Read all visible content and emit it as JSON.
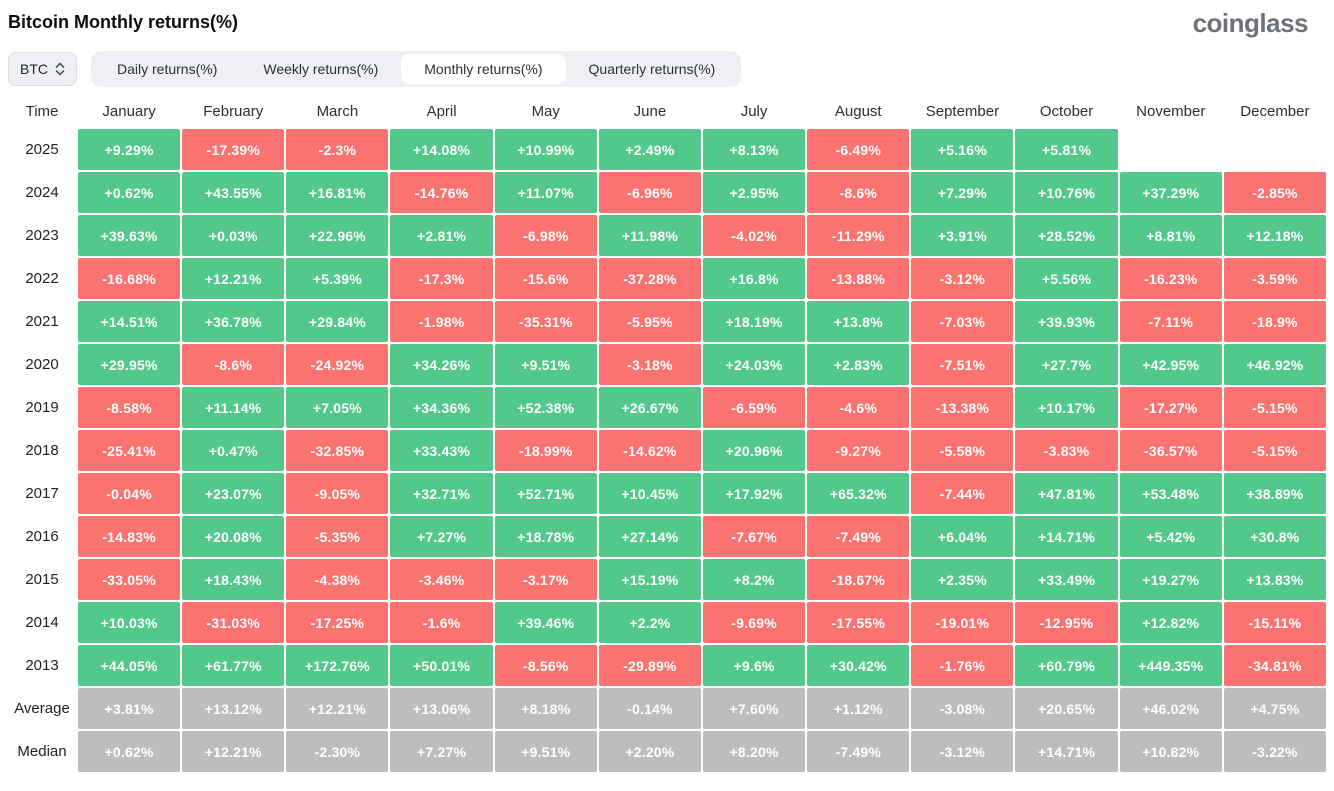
{
  "header": {
    "title": "Bitcoin Monthly returns(%)",
    "logo": "coinglass"
  },
  "controls": {
    "coin": "BTC",
    "tabs": [
      {
        "label": "Daily returns(%)",
        "active": false
      },
      {
        "label": "Weekly returns(%)",
        "active": false
      },
      {
        "label": "Monthly returns(%)",
        "active": true
      },
      {
        "label": "Quarterly returns(%)",
        "active": false
      }
    ]
  },
  "colors": {
    "positive": "#52c98a",
    "negative": "#fa7370",
    "neutral": "#bdbdbd"
  },
  "chart_data": {
    "type": "heatmap",
    "title": "Bitcoin Monthly returns(%)",
    "columns": [
      "Time",
      "January",
      "February",
      "March",
      "April",
      "May",
      "June",
      "July",
      "August",
      "September",
      "October",
      "November",
      "December"
    ],
    "rows": [
      {
        "label": "2025",
        "neutral": false,
        "values": [
          "+9.29%",
          "-17.39%",
          "-2.3%",
          "+14.08%",
          "+10.99%",
          "+2.49%",
          "+8.13%",
          "-6.49%",
          "+5.16%",
          "+5.81%",
          null,
          null
        ]
      },
      {
        "label": "2024",
        "neutral": false,
        "values": [
          "+0.62%",
          "+43.55%",
          "+16.81%",
          "-14.76%",
          "+11.07%",
          "-6.96%",
          "+2.95%",
          "-8.6%",
          "+7.29%",
          "+10.76%",
          "+37.29%",
          "-2.85%"
        ]
      },
      {
        "label": "2023",
        "neutral": false,
        "values": [
          "+39.63%",
          "+0.03%",
          "+22.96%",
          "+2.81%",
          "-6.98%",
          "+11.98%",
          "-4.02%",
          "-11.29%",
          "+3.91%",
          "+28.52%",
          "+8.81%",
          "+12.18%"
        ]
      },
      {
        "label": "2022",
        "neutral": false,
        "values": [
          "-16.68%",
          "+12.21%",
          "+5.39%",
          "-17.3%",
          "-15.6%",
          "-37.28%",
          "+16.8%",
          "-13.88%",
          "-3.12%",
          "+5.56%",
          "-16.23%",
          "-3.59%"
        ]
      },
      {
        "label": "2021",
        "neutral": false,
        "values": [
          "+14.51%",
          "+36.78%",
          "+29.84%",
          "-1.98%",
          "-35.31%",
          "-5.95%",
          "+18.19%",
          "+13.8%",
          "-7.03%",
          "+39.93%",
          "-7.11%",
          "-18.9%"
        ]
      },
      {
        "label": "2020",
        "neutral": false,
        "values": [
          "+29.95%",
          "-8.6%",
          "-24.92%",
          "+34.26%",
          "+9.51%",
          "-3.18%",
          "+24.03%",
          "+2.83%",
          "-7.51%",
          "+27.7%",
          "+42.95%",
          "+46.92%"
        ]
      },
      {
        "label": "2019",
        "neutral": false,
        "values": [
          "-8.58%",
          "+11.14%",
          "+7.05%",
          "+34.36%",
          "+52.38%",
          "+26.67%",
          "-6.59%",
          "-4.6%",
          "-13.38%",
          "+10.17%",
          "-17.27%",
          "-5.15%"
        ]
      },
      {
        "label": "2018",
        "neutral": false,
        "values": [
          "-25.41%",
          "+0.47%",
          "-32.85%",
          "+33.43%",
          "-18.99%",
          "-14.62%",
          "+20.96%",
          "-9.27%",
          "-5.58%",
          "-3.83%",
          "-36.57%",
          "-5.15%"
        ]
      },
      {
        "label": "2017",
        "neutral": false,
        "values": [
          "-0.04%",
          "+23.07%",
          "-9.05%",
          "+32.71%",
          "+52.71%",
          "+10.45%",
          "+17.92%",
          "+65.32%",
          "-7.44%",
          "+47.81%",
          "+53.48%",
          "+38.89%"
        ]
      },
      {
        "label": "2016",
        "neutral": false,
        "values": [
          "-14.83%",
          "+20.08%",
          "-5.35%",
          "+7.27%",
          "+18.78%",
          "+27.14%",
          "-7.67%",
          "-7.49%",
          "+6.04%",
          "+14.71%",
          "+5.42%",
          "+30.8%"
        ]
      },
      {
        "label": "2015",
        "neutral": false,
        "values": [
          "-33.05%",
          "+18.43%",
          "-4.38%",
          "-3.46%",
          "-3.17%",
          "+15.19%",
          "+8.2%",
          "-18.67%",
          "+2.35%",
          "+33.49%",
          "+19.27%",
          "+13.83%"
        ]
      },
      {
        "label": "2014",
        "neutral": false,
        "values": [
          "+10.03%",
          "-31.03%",
          "-17.25%",
          "-1.6%",
          "+39.46%",
          "+2.2%",
          "-9.69%",
          "-17.55%",
          "-19.01%",
          "-12.95%",
          "+12.82%",
          "-15.11%"
        ]
      },
      {
        "label": "2013",
        "neutral": false,
        "values": [
          "+44.05%",
          "+61.77%",
          "+172.76%",
          "+50.01%",
          "-8.56%",
          "-29.89%",
          "+9.6%",
          "+30.42%",
          "-1.76%",
          "+60.79%",
          "+449.35%",
          "-34.81%"
        ]
      },
      {
        "label": "Average",
        "neutral": true,
        "values": [
          "+3.81%",
          "+13.12%",
          "+12.21%",
          "+13.06%",
          "+8.18%",
          "-0.14%",
          "+7.60%",
          "+1.12%",
          "-3.08%",
          "+20.65%",
          "+46.02%",
          "+4.75%"
        ]
      },
      {
        "label": "Median",
        "neutral": true,
        "values": [
          "+0.62%",
          "+12.21%",
          "-2.30%",
          "+7.27%",
          "+9.51%",
          "+2.20%",
          "+8.20%",
          "-7.49%",
          "-3.12%",
          "+14.71%",
          "+10.82%",
          "-3.22%"
        ]
      }
    ]
  }
}
